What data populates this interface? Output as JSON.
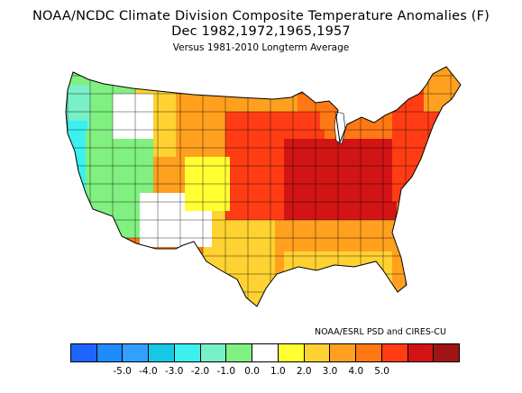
{
  "title": {
    "line1": "NOAA/NCDC Climate Division Composite Temperature Anomalies (F)",
    "line2": "Dec  1982,1972,1965,1957",
    "line3": "Versus 1981-2010 Longterm Average"
  },
  "credit": "NOAA/ESRL PSD and CIRES-CU",
  "legend": {
    "ticks": [
      "-5.0",
      "-4.0",
      "-3.0",
      "-2.0",
      "-1.0",
      "0.0",
      "1.0",
      "2.0",
      "3.0",
      "4.0",
      "5.0"
    ],
    "colors": [
      "#1e64ff",
      "#1e8cff",
      "#32a0ff",
      "#14c8e6",
      "#3cf0f0",
      "#78f0c8",
      "#80f080",
      "#ffffff",
      "#ffff32",
      "#ffd232",
      "#ffa01e",
      "#ff7814",
      "#ff3c14",
      "#d21414",
      "#a01414"
    ]
  },
  "map_regions": [
    {
      "name": "pacific-northwest",
      "color": "#78f0c8"
    },
    {
      "name": "california-coast",
      "color": "#3cf0f0"
    },
    {
      "name": "great-basin",
      "color": "#80f080"
    },
    {
      "name": "four-corners",
      "color": "#ffffff"
    },
    {
      "name": "southern-rockies",
      "color": "#ffff32"
    },
    {
      "name": "northern-plains",
      "color": "#ffa01e"
    },
    {
      "name": "central-plains",
      "color": "#ff3c14"
    },
    {
      "name": "ohio-valley",
      "color": "#d21414"
    },
    {
      "name": "northeast",
      "color": "#ff7814"
    },
    {
      "name": "southeast",
      "color": "#ffa01e"
    },
    {
      "name": "gulf-coast",
      "color": "#ffd232"
    }
  ]
}
